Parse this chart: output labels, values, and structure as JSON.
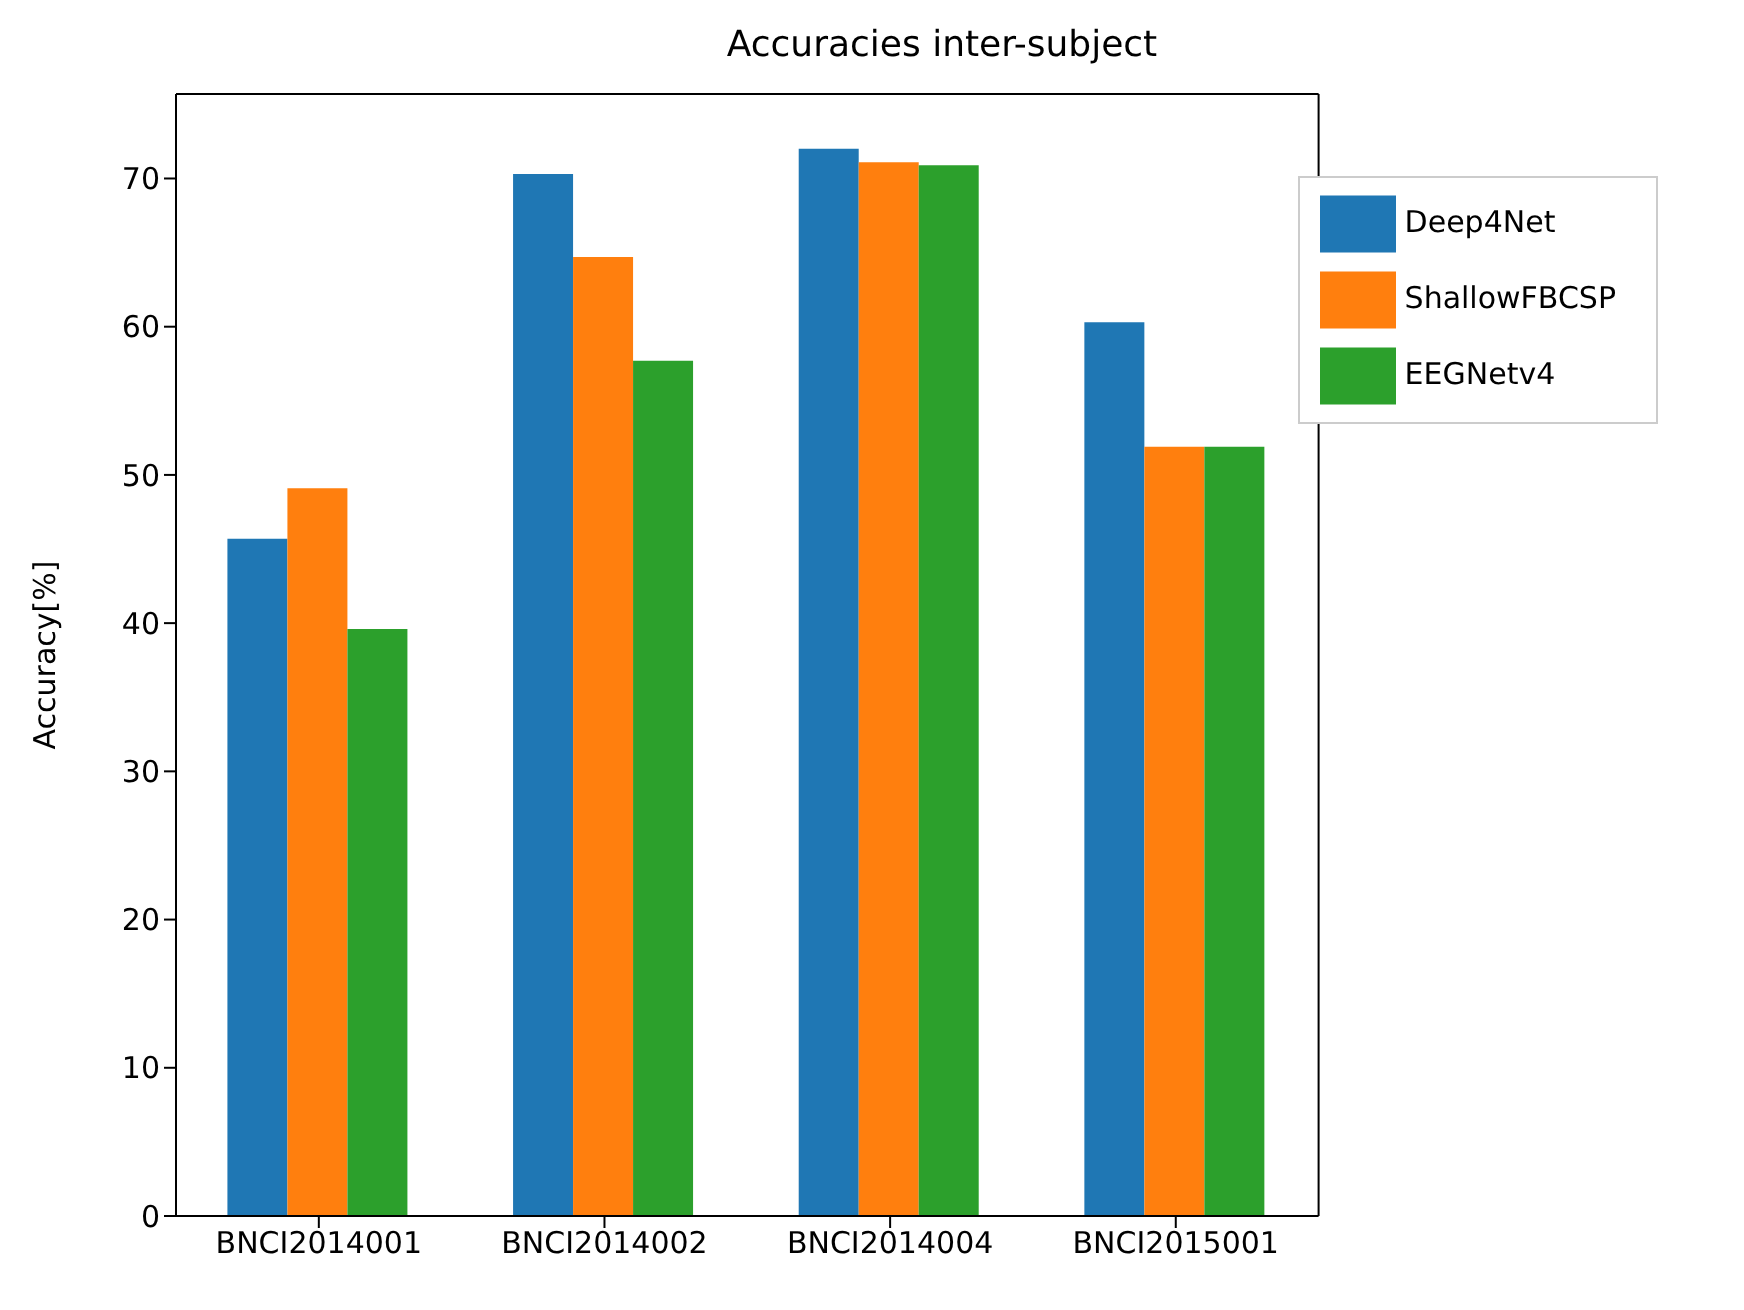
{
  "chart_data": {
    "type": "bar",
    "title": "Accuracies inter-subject",
    "ylabel": "Accuracy[%]",
    "categories": [
      "BNCI2014001",
      "BNCI2014002",
      "BNCI2014004",
      "BNCI2015001"
    ],
    "series": [
      {
        "name": "Deep4Net",
        "color": "#1f77b4",
        "values": [
          45.7,
          70.3,
          72.0,
          60.3
        ]
      },
      {
        "name": "ShallowFBCSP",
        "color": "#ff7f0e",
        "values": [
          49.1,
          64.7,
          71.1,
          51.9
        ]
      },
      {
        "name": "EEGNetv4",
        "color": "#2ca02c",
        "values": [
          39.6,
          57.7,
          70.9,
          51.9
        ]
      }
    ],
    "ylim": [
      0,
      75.7
    ],
    "yticks": [
      0,
      10,
      20,
      30,
      40,
      50,
      60,
      70
    ],
    "grid": false,
    "legend": "top right"
  }
}
